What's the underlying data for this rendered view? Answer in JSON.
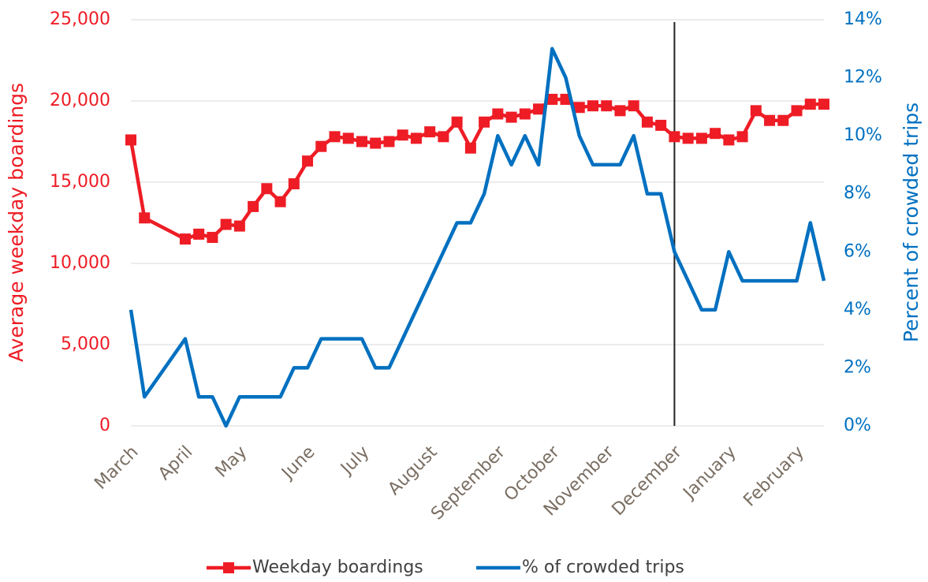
{
  "chart_data": {
    "type": "line",
    "y_label": "Average weekday boardings",
    "y2_label": "Percent of crowded trips",
    "xlim": [
      0,
      51
    ],
    "xticks": [
      {
        "value": 0,
        "label": "March"
      },
      {
        "value": 4,
        "label": "April"
      },
      {
        "value": 8,
        "label": "May"
      },
      {
        "value": 13,
        "label": "June"
      },
      {
        "value": 17,
        "label": "July"
      },
      {
        "value": 22,
        "label": "August"
      },
      {
        "value": 27,
        "label": "September"
      },
      {
        "value": 31,
        "label": "October"
      },
      {
        "value": 35,
        "label": "November"
      },
      {
        "value": 40,
        "label": "December"
      },
      {
        "value": 44,
        "label": "January"
      },
      {
        "value": 49,
        "label": "February"
      }
    ],
    "ylim": [
      0,
      25000
    ],
    "yticks": [
      0,
      {
        "value": 5000,
        "label": "5,000"
      },
      {
        "value": 10000,
        "label": "10,000"
      },
      {
        "value": 15000,
        "label": "15,000"
      },
      {
        "value": 20000,
        "label": "20,000"
      },
      {
        "value": 25000,
        "label": "25,000"
      }
    ],
    "y2lim": [
      0,
      14
    ],
    "y2ticks": [
      {
        "value": 0,
        "label": "0%"
      },
      {
        "value": 2,
        "label": "2%"
      },
      {
        "value": 4,
        "label": "4%"
      },
      {
        "value": 6,
        "label": "6%"
      },
      {
        "value": 8,
        "label": "8%"
      },
      {
        "value": 10,
        "label": "10%"
      },
      {
        "value": 12,
        "label": "12%"
      },
      {
        "value": 14,
        "label": "14%"
      }
    ],
    "grid": true,
    "vertical_line_x": 40,
    "legend": "bottom",
    "series": [
      {
        "name": "Weekday boardings",
        "color": "#ee1c25",
        "marker": "square",
        "x": [
          0,
          1,
          4,
          5,
          6,
          7,
          8,
          9,
          10,
          11,
          12,
          13,
          14,
          15,
          16,
          17,
          18,
          19,
          20,
          21,
          22,
          23,
          24,
          25,
          26,
          27,
          28,
          29,
          30,
          31,
          32,
          33,
          34,
          35,
          36,
          37,
          38,
          39,
          40,
          41,
          42,
          43,
          44,
          45,
          46,
          47,
          48,
          49,
          50,
          51
        ],
        "values": [
          17600,
          12800,
          11500,
          11800,
          11600,
          12400,
          12300,
          13500,
          14600,
          13800,
          14900,
          16300,
          17200,
          17800,
          17700,
          17500,
          17400,
          17500,
          17900,
          17700,
          18100,
          17800,
          18700,
          17100,
          18700,
          19200,
          19000,
          19200,
          19500,
          20100,
          20100,
          19600,
          19700,
          19700,
          19400,
          19700,
          18700,
          18500,
          17800,
          17700,
          17700,
          18000,
          17600,
          17800,
          19400,
          18800,
          18800,
          19400,
          19800,
          19800
        ]
      },
      {
        "name": "% of crowded trips",
        "color": "#0070c0",
        "axis": "y2",
        "x": [
          0,
          1,
          4,
          5,
          6,
          7,
          8,
          9,
          10,
          11,
          12,
          13,
          14,
          15,
          16,
          17,
          18,
          19,
          20,
          21,
          22,
          23,
          24,
          25,
          26,
          27,
          28,
          29,
          30,
          31,
          32,
          33,
          34,
          35,
          36,
          37,
          38,
          39,
          40,
          41,
          42,
          43,
          44,
          45,
          46,
          47,
          48,
          49,
          50,
          51
        ],
        "values": [
          4,
          1,
          3,
          1,
          1,
          0,
          1,
          1,
          1,
          1,
          2,
          2,
          3,
          3,
          3,
          3,
          2,
          2,
          3,
          4,
          5,
          6,
          7,
          7,
          8,
          10,
          9,
          10,
          9,
          13,
          12,
          10,
          9,
          9,
          9,
          10,
          8,
          8,
          6,
          5,
          4,
          4,
          6,
          5,
          5,
          5,
          5,
          5,
          7,
          5
        ]
      }
    ]
  }
}
